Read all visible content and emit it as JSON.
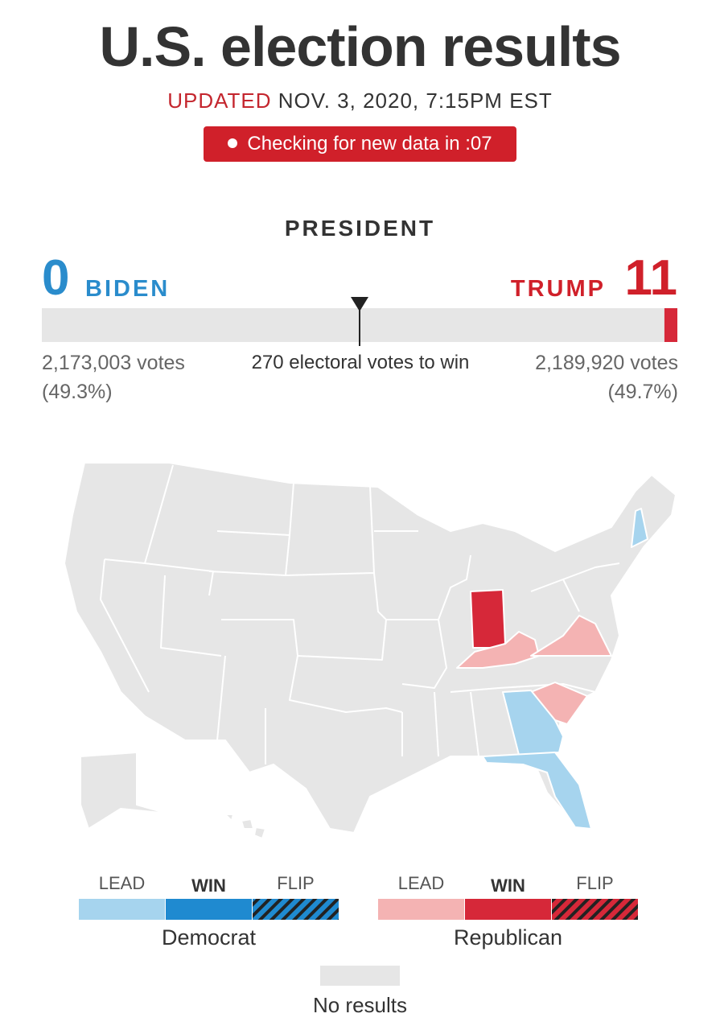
{
  "header": {
    "title": "U.S. election results",
    "updated_label": "UPDATED",
    "timestamp": "NOV. 3, 2020, 7:15PM EST",
    "status": "Checking for new data in :07"
  },
  "president": {
    "heading": "PRESIDENT",
    "candidates": [
      {
        "name": "BIDEN",
        "electoral_votes": 0,
        "votes": "2,173,003 votes",
        "share": "(49.3%)"
      },
      {
        "name": "TRUMP",
        "electoral_votes": 11,
        "votes": "2,189,920 votes",
        "share": "(49.7%)"
      }
    ],
    "threshold": 270,
    "threshold_label": "270 electoral votes to win"
  },
  "legend": {
    "groups": [
      {
        "name": "Democrat",
        "items": [
          "LEAD",
          "WIN",
          "FLIP"
        ]
      },
      {
        "name": "Republican",
        "items": [
          "LEAD",
          "WIN",
          "FLIP"
        ]
      }
    ],
    "no_results": "No results"
  }
}
